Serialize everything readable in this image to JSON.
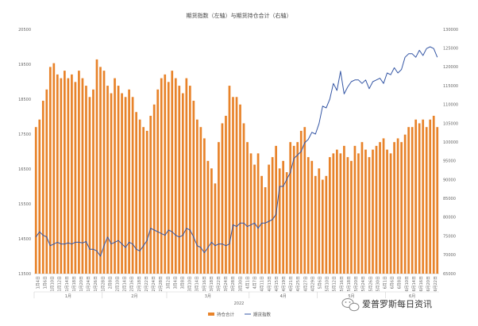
{
  "colors": {
    "bar": "#E8832A",
    "line": "#3355A4",
    "axis": "#D0D0D0",
    "text": "#666666"
  },
  "watermark": {
    "text": "爱普罗斯每日资讯",
    "icon": "wechat-icon"
  },
  "chart_data": {
    "type": "bar+line",
    "title": "期货指数（左轴）与期货持仓合计（右轴）",
    "year_label": "2022",
    "left_axis": {
      "min": 13500,
      "max": 20500,
      "ticks": [
        13500,
        14500,
        15500,
        16500,
        17500,
        18500,
        19500,
        20500
      ]
    },
    "right_axis": {
      "min": 65000,
      "max": 130000,
      "ticks": [
        65000,
        70000,
        75000,
        80000,
        85000,
        90000,
        95000,
        100000,
        105000,
        110000,
        115000,
        120000,
        125000,
        130000
      ]
    },
    "x_labels": [
      "1月4日",
      "1月6日",
      "1月10日",
      "1月12日",
      "1月14日",
      "1月18日",
      "1月20日",
      "1月24日",
      "1月26日",
      "1月28日",
      "2月8日",
      "2月10日",
      "2月14日",
      "2月16日",
      "2月18日",
      "2月22日",
      "2月24日",
      "2月28日",
      "3月2日",
      "3月4日",
      "3月8日",
      "3月10日",
      "3月14日",
      "3月16日",
      "3月18日",
      "3月22日",
      "3月24日",
      "3月28日",
      "3月30日",
      "4月1日",
      "4月7日",
      "4月11日",
      "4月13日",
      "4月15日",
      "4月19日",
      "4月21日",
      "4月25日",
      "4月27日",
      "4月29日",
      "5月6日",
      "5月10日",
      "5月12日",
      "5月16日",
      "5月18日",
      "5月20日",
      "5月24日",
      "5月26日",
      "5月30日",
      "6月1日",
      "6月6日",
      "6月8日",
      "6月10日",
      "6月14日",
      "6月16日",
      "6月20日",
      "6月22日"
    ],
    "month_labels": [
      {
        "label": "1月",
        "start": 0,
        "end": 18
      },
      {
        "label": "2月",
        "start": 19,
        "end": 36
      },
      {
        "label": "3月",
        "start": 37,
        "end": 59
      },
      {
        "label": "4月",
        "start": 60,
        "end": 78
      },
      {
        "label": "5月",
        "start": 79,
        "end": 97
      },
      {
        "label": "6月",
        "start": 98,
        "end": 112
      }
    ],
    "series": [
      {
        "name": "持仓合计",
        "kind": "bar",
        "axis": "right",
        "values": [
          104000,
          106000,
          111000,
          114000,
          120000,
          121000,
          118000,
          117000,
          119000,
          117000,
          118000,
          116000,
          119000,
          117000,
          115000,
          112000,
          114000,
          122000,
          120000,
          119000,
          115000,
          113000,
          117000,
          115000,
          113000,
          112000,
          114000,
          112000,
          108000,
          106000,
          104000,
          103000,
          107000,
          110000,
          114000,
          117000,
          118000,
          116000,
          119000,
          117000,
          115000,
          113000,
          117000,
          115000,
          111000,
          106000,
          104000,
          101000,
          95000,
          93000,
          89000,
          100000,
          105000,
          107000,
          115000,
          112000,
          112000,
          110000,
          105000,
          100000,
          97000,
          94000,
          97000,
          91000,
          88000,
          94000,
          96000,
          99000,
          93000,
          95000,
          92000,
          100000,
          99000,
          100000,
          103000,
          104000,
          96000,
          95000,
          91000,
          93000,
          90000,
          91000,
          96000,
          97000,
          98000,
          97000,
          99000,
          96000,
          95000,
          99000,
          97000,
          100000,
          98000,
          96000,
          98000,
          99000,
          100000,
          101000,
          98000,
          97000,
          100000,
          101000,
          100000,
          102000,
          104000,
          104000,
          106000,
          105000,
          106000,
          104000,
          106000,
          107000,
          104000
        ],
        "render_count": 113
      },
      {
        "name": "期货指数",
        "kind": "line",
        "axis": "left",
        "values": [
          14550,
          14700,
          14600,
          14550,
          14300,
          14350,
          14400,
          14350,
          14350,
          14380,
          14350,
          14400,
          14400,
          14380,
          14420,
          14200,
          14200,
          14150,
          14000,
          14300,
          14550,
          14350,
          14400,
          14450,
          14350,
          14250,
          14400,
          14350,
          14200,
          14150,
          14300,
          14450,
          14800,
          14750,
          14700,
          14650,
          14600,
          14750,
          14700,
          14600,
          14550,
          14600,
          14800,
          14750,
          14550,
          14300,
          14250,
          14100,
          14250,
          14400,
          14300,
          14350,
          14350,
          14300,
          14350,
          14900,
          14850,
          14950,
          14950,
          14850,
          14900,
          14950,
          14800,
          14950,
          14950,
          15000,
          15050,
          15200,
          16000,
          16000,
          16200,
          16400,
          16800,
          16900,
          17000,
          17250,
          17350,
          17550,
          17500,
          17800,
          18300,
          18250,
          18500,
          18950,
          18750,
          19300,
          18650,
          18850,
          19000,
          19050,
          19050,
          18950,
          19050,
          18800,
          19000,
          19050,
          19100,
          18950,
          19250,
          19200,
          19400,
          19250,
          19350,
          19700,
          19800,
          19800,
          19700,
          19900,
          19750,
          19950,
          20000,
          19950,
          19700
        ]
      }
    ]
  }
}
